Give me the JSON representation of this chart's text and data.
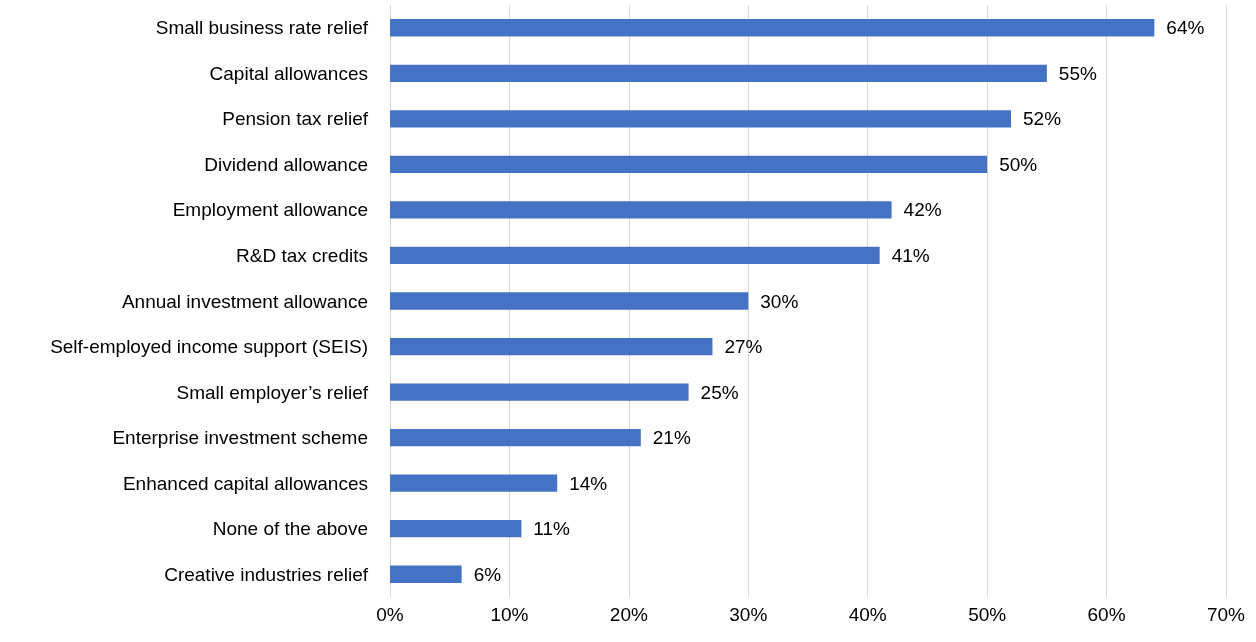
{
  "chart_data": {
    "type": "bar",
    "orientation": "horizontal",
    "categories": [
      "Small business rate relief",
      "Capital allowances",
      "Pension tax relief",
      "Dividend allowance",
      "Employment allowance",
      "R&D tax credits",
      "Annual investment allowance",
      "Self-employed income support (SEIS)",
      "Small employer’s relief",
      "Enterprise investment scheme",
      "Enhanced capital allowances",
      "None of the above",
      "Creative industries relief"
    ],
    "values": [
      64,
      55,
      52,
      50,
      42,
      41,
      30,
      27,
      25,
      21,
      14,
      11,
      6
    ],
    "value_labels": [
      "64%",
      "55%",
      "52%",
      "50%",
      "42%",
      "41%",
      "30%",
      "27%",
      "25%",
      "21%",
      "14%",
      "11%",
      "6%"
    ],
    "color": "#4472c4",
    "xlim": [
      0,
      70
    ],
    "xticks": [
      {
        "value": 0,
        "label": "0%"
      },
      {
        "value": 10,
        "label": "10%"
      },
      {
        "value": 20,
        "label": "20%"
      },
      {
        "value": 30,
        "label": "30%"
      },
      {
        "value": 40,
        "label": "40%"
      },
      {
        "value": 50,
        "label": "50%"
      },
      {
        "value": 60,
        "label": "60%"
      },
      {
        "value": 70,
        "label": "70%"
      }
    ],
    "grid": "x"
  }
}
